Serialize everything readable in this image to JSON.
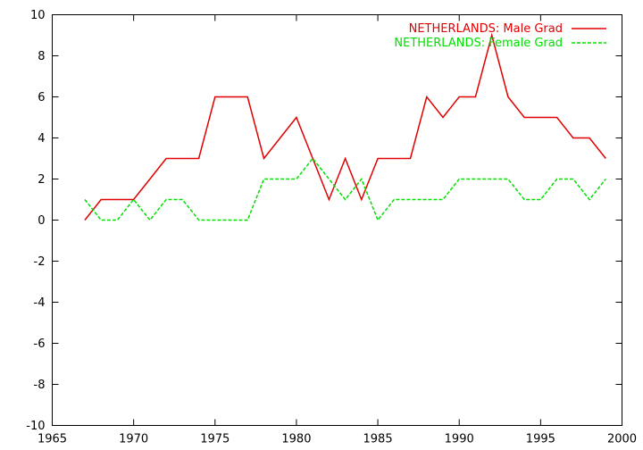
{
  "chart_data": {
    "type": "line",
    "title": "",
    "xlabel": "",
    "ylabel": "",
    "xlim": [
      1965,
      2000
    ],
    "ylim": [
      -10,
      10
    ],
    "x_ticks": [
      1965,
      1970,
      1975,
      1980,
      1985,
      1990,
      1995,
      2000
    ],
    "y_ticks": [
      -10,
      -8,
      -6,
      -4,
      -2,
      0,
      2,
      4,
      6,
      8,
      10
    ],
    "x_tick_labels": [
      "1965",
      "1970",
      "1975",
      "1980",
      "1985",
      "1990",
      "1995",
      "2000"
    ],
    "y_tick_labels": [
      "-10",
      "-8",
      "-6",
      "-4",
      "-2",
      "0",
      "2",
      "4",
      "6",
      "8",
      "10"
    ],
    "grid": false,
    "legend_position": "top-right",
    "series": [
      {
        "name": "NETHERLANDS: Male Grad",
        "color": "#e00000",
        "dash": "solid",
        "x": [
          1967,
          1968,
          1969,
          1970,
          1971,
          1972,
          1973,
          1974,
          1975,
          1976,
          1977,
          1978,
          1979,
          1980,
          1981,
          1982,
          1983,
          1984,
          1985,
          1986,
          1987,
          1988,
          1989,
          1990,
          1991,
          1992,
          1993,
          1994,
          1995,
          1996,
          1997,
          1998,
          1999
        ],
        "values": [
          0,
          1,
          1,
          1,
          2,
          3,
          3,
          3,
          6,
          6,
          6,
          3,
          4,
          5,
          3,
          1,
          3,
          1,
          3,
          3,
          3,
          6,
          5,
          6,
          6,
          9,
          6,
          5,
          5,
          5,
          4,
          4,
          3
        ]
      },
      {
        "name": "NETHERLANDS: Female Grad",
        "color": "#00e000",
        "dash": "dashed",
        "x": [
          1967,
          1968,
          1969,
          1970,
          1971,
          1972,
          1973,
          1974,
          1975,
          1976,
          1977,
          1978,
          1979,
          1980,
          1981,
          1982,
          1983,
          1984,
          1985,
          1986,
          1987,
          1988,
          1989,
          1990,
          1991,
          1992,
          1993,
          1994,
          1995,
          1996,
          1997,
          1998,
          1999
        ],
        "values": [
          1,
          0,
          0,
          1,
          0,
          1,
          1,
          0,
          0,
          0,
          0,
          2,
          2,
          2,
          3,
          2,
          1,
          2,
          0,
          1,
          1,
          1,
          1,
          2,
          2,
          2,
          2,
          1,
          1,
          2,
          2,
          1,
          2
        ]
      }
    ]
  }
}
